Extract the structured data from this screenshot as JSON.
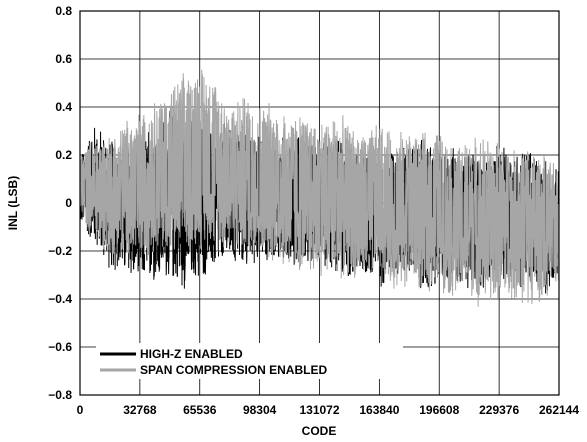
{
  "chart_data": {
    "type": "line",
    "title": "",
    "xlabel": "CODE",
    "ylabel": "INL (LSB)",
    "xlim": [
      0,
      262144
    ],
    "ylim": [
      -0.8,
      0.8
    ],
    "x_ticks": [
      0,
      32768,
      65536,
      98304,
      131072,
      163840,
      196608,
      229376,
      262144
    ],
    "x_tick_labels": [
      "0",
      "32768",
      "65536",
      "98304",
      "131072",
      "163840",
      "196608",
      "229376",
      "262144"
    ],
    "y_ticks": [
      -0.8,
      -0.6,
      -0.4,
      -0.2,
      0,
      0.2,
      0.4,
      0.6,
      0.8
    ],
    "y_tick_labels": [
      "−0.8",
      "−0.6",
      "−0.4",
      "−0.2",
      "0",
      "0.2",
      "0.4",
      "0.6",
      "0.8"
    ],
    "grid": true,
    "legend_position": "bottom-left",
    "series": [
      {
        "name": "HIGH-Z ENABLED",
        "color": "#000000",
        "envelope_x": [
          0,
          8192,
          16384,
          24576,
          32768,
          40960,
          49152,
          57344,
          65536,
          73728,
          81920,
          90112,
          98304,
          106496,
          114688,
          122880,
          131072,
          139264,
          147456,
          155648,
          163840,
          172032,
          180224,
          188416,
          196608,
          204800,
          212992,
          221184,
          229376,
          237568,
          245760,
          253952,
          262144
        ],
        "upper": [
          0.2,
          0.35,
          0.28,
          0.28,
          0.3,
          0.36,
          0.4,
          0.38,
          0.38,
          0.3,
          0.38,
          0.33,
          0.3,
          0.27,
          0.31,
          0.3,
          0.27,
          0.29,
          0.25,
          0.27,
          0.22,
          0.27,
          0.25,
          0.29,
          0.26,
          0.24,
          0.24,
          0.2,
          0.25,
          0.24,
          0.25,
          0.2,
          0.14
        ],
        "lower": [
          -0.1,
          -0.2,
          -0.29,
          -0.32,
          -0.36,
          -0.34,
          -0.34,
          -0.38,
          -0.34,
          -0.3,
          -0.28,
          -0.28,
          -0.26,
          -0.25,
          -0.28,
          -0.29,
          -0.27,
          -0.3,
          -0.34,
          -0.33,
          -0.37,
          -0.32,
          -0.31,
          -0.42,
          -0.38,
          -0.35,
          -0.37,
          -0.38,
          -0.33,
          -0.36,
          -0.38,
          -0.42,
          -0.3
        ]
      },
      {
        "name": "SPAN COMPRESSION ENABLED",
        "color": "#a6a6a6",
        "envelope_x": [
          0,
          8192,
          16384,
          24576,
          32768,
          40960,
          49152,
          57344,
          65536,
          73728,
          81920,
          90112,
          98304,
          106496,
          114688,
          122880,
          131072,
          139264,
          147456,
          155648,
          163840,
          172032,
          180224,
          188416,
          196608,
          204800,
          212992,
          221184,
          229376,
          237568,
          245760,
          253952,
          262144
        ],
        "upper": [
          0.22,
          0.29,
          0.3,
          0.36,
          0.4,
          0.45,
          0.5,
          0.56,
          0.61,
          0.55,
          0.44,
          0.47,
          0.43,
          0.44,
          0.4,
          0.39,
          0.37,
          0.39,
          0.35,
          0.31,
          0.35,
          0.3,
          0.33,
          0.3,
          0.33,
          0.24,
          0.29,
          0.3,
          0.27,
          0.24,
          0.26,
          0.21,
          0.16
        ],
        "lower": [
          -0.07,
          -0.16,
          -0.23,
          -0.24,
          -0.27,
          -0.21,
          -0.25,
          -0.25,
          -0.2,
          -0.22,
          -0.21,
          -0.23,
          -0.25,
          -0.26,
          -0.3,
          -0.31,
          -0.32,
          -0.33,
          -0.32,
          -0.35,
          -0.3,
          -0.38,
          -0.35,
          -0.4,
          -0.36,
          -0.43,
          -0.4,
          -0.46,
          -0.42,
          -0.43,
          -0.44,
          -0.42,
          -0.35
        ]
      }
    ]
  }
}
